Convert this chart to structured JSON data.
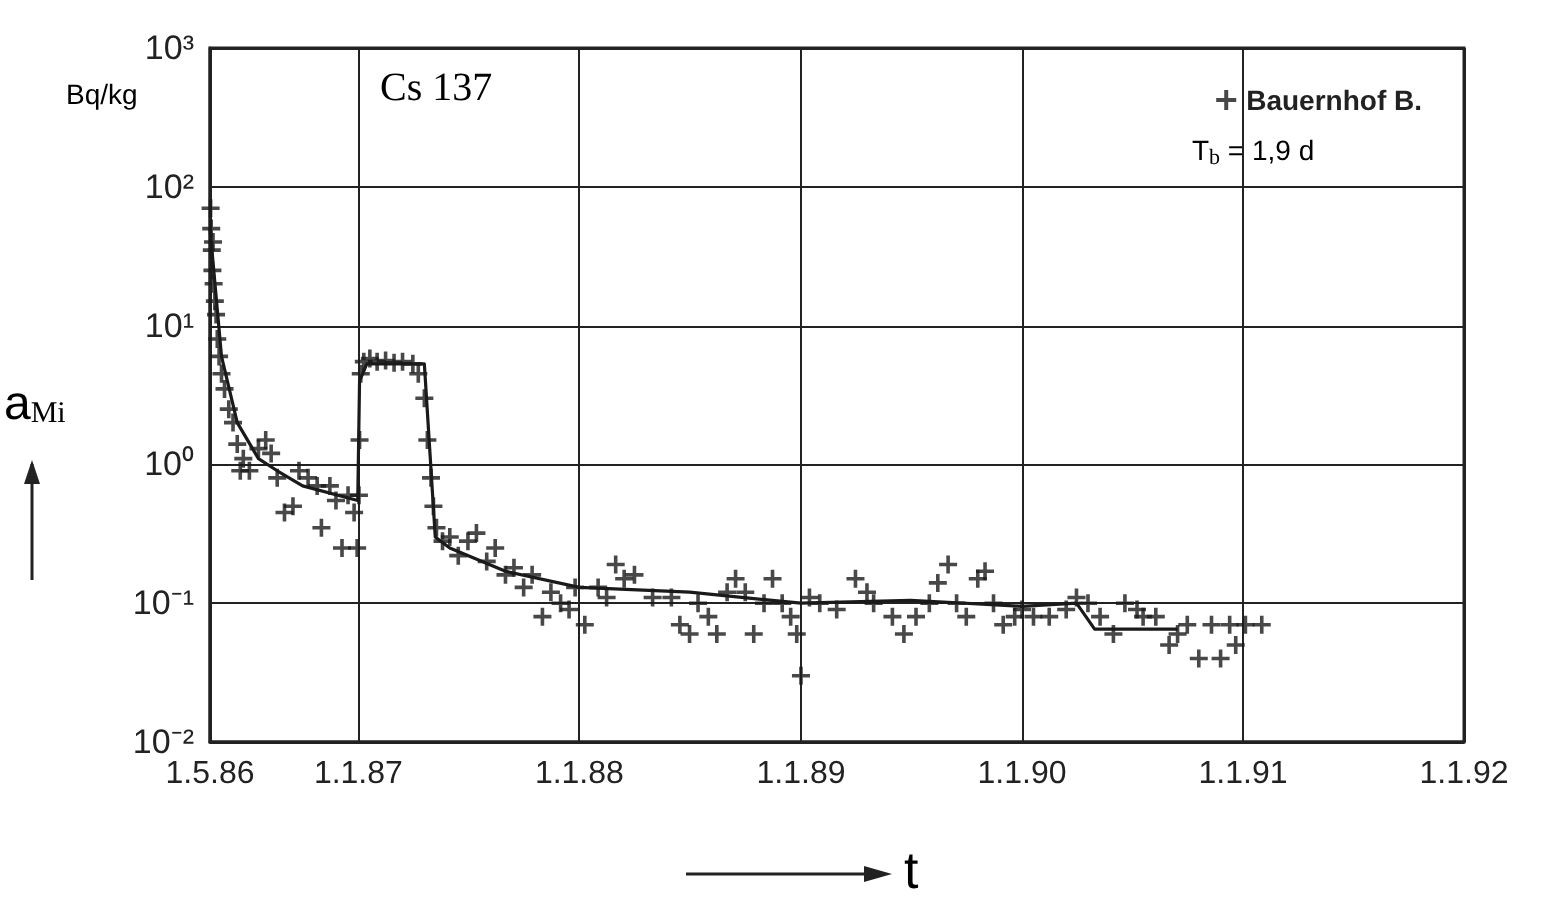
{
  "chart_data": {
    "type": "scatter",
    "xlabel": "t",
    "ylabel": "a$_{Mi}$",
    "annotations": [
      "Bq/kg",
      "Cs 137",
      "T$_{b}$ = 1,9 d"
    ],
    "log": "y",
    "grid": true,
    "legend": "top right",
    "xlim": [
      "1986-05-01",
      "1992-01-01"
    ],
    "xticks": [
      {
        "value": "1986-05-01",
        "label": "1.5.86"
      },
      {
        "value": "1987-01-01",
        "label": "1.1.87"
      },
      {
        "value": "1988-01-01",
        "label": "1.1.88"
      },
      {
        "value": "1989-01-01",
        "label": "1.1.89"
      },
      {
        "value": "1990-01-01",
        "label": "1.1.90"
      },
      {
        "value": "1991-01-01",
        "label": "1.1.91"
      },
      {
        "value": "1992-01-01",
        "label": "1.1.92"
      }
    ],
    "ylim": [
      0.01,
      1000
    ],
    "yticks": [
      {
        "value": 0.01,
        "label": "10⁻²"
      },
      {
        "value": 0.1,
        "label": "10⁻¹"
      },
      {
        "value": 1,
        "label": "10⁰"
      },
      {
        "value": 10,
        "label": "10¹"
      },
      {
        "value": 100,
        "label": "10²"
      },
      {
        "value": 1000,
        "label": "10³"
      }
    ],
    "series": [
      {
        "name": "Bauernhof B.",
        "color": "#1a1a1a",
        "marker": "cross",
        "x": [
          "1986-05-02",
          "1986-05-03",
          "1986-05-04",
          "1986-05-05",
          "1986-05-06",
          "1986-05-07",
          "1986-05-09",
          "1986-05-11",
          "1986-05-13",
          "1986-05-16",
          "1986-05-20",
          "1986-05-25",
          "1986-06-01",
          "1986-06-08",
          "1986-06-15",
          "1986-06-20",
          "1986-06-25",
          "1986-07-05",
          "1986-07-20",
          "1986-08-01",
          "1986-08-10",
          "1986-08-20",
          "1986-09-01",
          "1986-09-15",
          "1986-09-25",
          "1986-10-10",
          "1986-10-25",
          "1986-11-01",
          "1986-11-15",
          "1986-11-25",
          "1986-12-05",
          "1986-12-15",
          "1986-12-25",
          "1986-12-30",
          "1987-01-02",
          "1987-01-03",
          "1987-01-05",
          "1987-01-10",
          "1987-01-20",
          "1987-02-01",
          "1987-02-15",
          "1987-03-01",
          "1987-03-15",
          "1987-04-01",
          "1987-04-10",
          "1987-04-20",
          "1987-04-25",
          "1987-05-01",
          "1987-05-05",
          "1987-05-10",
          "1987-05-20",
          "1987-06-01",
          "1987-06-15",
          "1987-07-01",
          "1987-07-15",
          "1987-08-01",
          "1987-08-15",
          "1987-09-01",
          "1987-09-15",
          "1987-10-01",
          "1987-10-15",
          "1987-11-01",
          "1987-11-15",
          "1987-12-01",
          "1987-12-15",
          "1987-12-25",
          "1988-01-10",
          "1988-02-01",
          "1988-02-15",
          "1988-03-01",
          "1988-03-15",
          "1988-04-01",
          "1988-05-01",
          "1988-06-01",
          "1988-06-15",
          "1988-07-01",
          "1988-07-15",
          "1988-08-01",
          "1988-08-15",
          "1988-09-01",
          "1988-09-15",
          "1988-10-01",
          "1988-10-15",
          "1988-11-01",
          "1988-11-15",
          "1988-12-01",
          "1988-12-15",
          "1988-12-25",
          "1989-01-01",
          "1989-01-15",
          "1989-02-01",
          "1989-03-01",
          "1989-04-01",
          "1989-04-20",
          "1989-05-01",
          "1989-06-01",
          "1989-06-20",
          "1989-07-10",
          "1989-08-01",
          "1989-08-15",
          "1989-09-01",
          "1989-09-15",
          "1989-10-01",
          "1989-10-20",
          "1989-11-01",
          "1989-11-15",
          "1989-12-01",
          "1989-12-20",
          "1990-01-01",
          "1990-01-20",
          "1990-02-15",
          "1990-03-15",
          "1990-04-01",
          "1990-04-20",
          "1990-05-10",
          "1990-06-01",
          "1990-06-20",
          "1990-07-10",
          "1990-07-20",
          "1990-08-10",
          "1990-09-01",
          "1990-09-15",
          "1990-10-01",
          "1990-10-20",
          "1990-11-10",
          "1990-11-25",
          "1990-12-10",
          "1990-12-20",
          "1991-01-05",
          "1991-02-01"
        ],
        "values": [
          70,
          50,
          35,
          25,
          40,
          20,
          15,
          12,
          8,
          6,
          4.5,
          3.5,
          2.5,
          2,
          1.4,
          0.9,
          1.1,
          0.9,
          1.3,
          1.5,
          1.2,
          0.8,
          0.45,
          0.5,
          0.9,
          0.8,
          0.7,
          0.35,
          0.7,
          0.55,
          0.25,
          0.6,
          0.45,
          0.25,
          0.6,
          1.5,
          4.5,
          5.5,
          5.8,
          5.5,
          5.6,
          5.4,
          5.5,
          5.3,
          4.5,
          3,
          1.5,
          0.8,
          0.5,
          0.35,
          0.28,
          0.3,
          0.22,
          0.28,
          0.32,
          0.2,
          0.25,
          0.16,
          0.18,
          0.13,
          0.16,
          0.08,
          0.12,
          0.1,
          0.09,
          0.13,
          0.07,
          0.13,
          0.11,
          0.19,
          0.15,
          0.16,
          0.11,
          0.11,
          0.07,
          0.06,
          0.1,
          0.08,
          0.06,
          0.12,
          0.15,
          0.12,
          0.06,
          0.1,
          0.15,
          0.1,
          0.08,
          0.06,
          0.03,
          0.11,
          0.1,
          0.09,
          0.15,
          0.12,
          0.1,
          0.08,
          0.06,
          0.08,
          0.1,
          0.14,
          0.19,
          0.1,
          0.08,
          0.15,
          0.17,
          0.1,
          0.07,
          0.08,
          0.09,
          0.08,
          0.08,
          0.09,
          0.11,
          0.1,
          0.08,
          0.06,
          0.1,
          0.09,
          0.08,
          0.08,
          0.05,
          0.06,
          0.07,
          0.04,
          0.07,
          0.04,
          0.07,
          0.05,
          0.07,
          0.07
        ]
      },
      {
        "type": "line",
        "color": "#1a1a1a",
        "marker": "none",
        "x": [
          "1986-05-01",
          "1986-05-20",
          "1986-06-15",
          "1986-07-20",
          "1986-08-20",
          "1986-10-01",
          "1986-12-31",
          "1987-01-03",
          "1987-01-15",
          "1987-04-20",
          "1987-05-08",
          "1987-06-01",
          "1987-09-01",
          "1988-01-01",
          "1988-07-01",
          "1989-01-01",
          "1989-07-01",
          "1990-01-01",
          "1990-04-01",
          "1990-05-01",
          "1990-09-15"
        ],
        "values": [
          50,
          6,
          2,
          1.1,
          0.9,
          0.7,
          0.55,
          4,
          5.3,
          5.3,
          0.3,
          0.25,
          0.17,
          0.13,
          0.12,
          0.1,
          0.105,
          0.095,
          0.1,
          0.065,
          0.065
        ]
      }
    ]
  }
}
